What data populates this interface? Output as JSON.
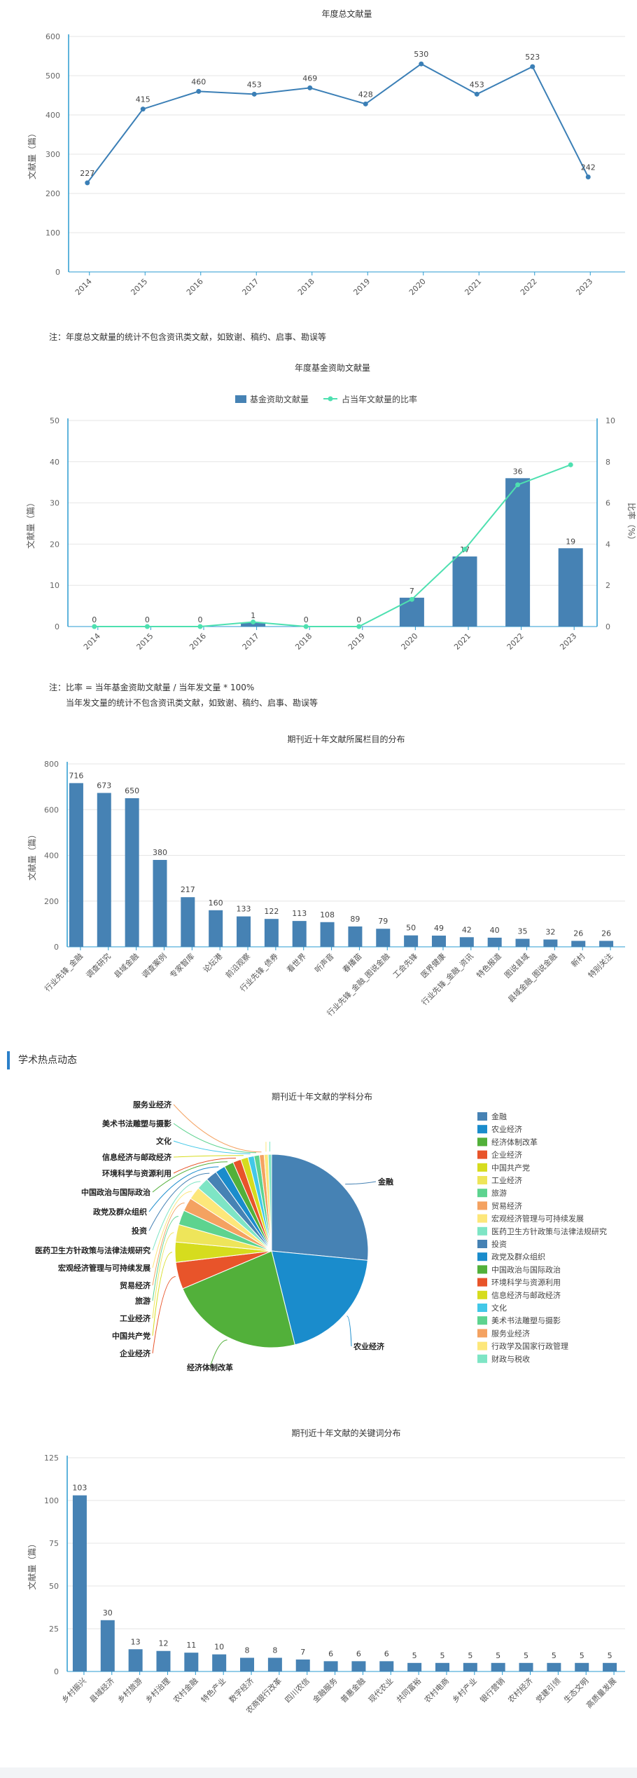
{
  "annual_note": "注：年度总文献量的统计不包含资讯类文献，如致谢、稿约、启事、勘误等",
  "fund_note": [
    "注：比率 = 当年基金资助文献量 / 当年发文量 * 100%",
    "当年发文量的统计不包含资讯类文献，如致谢、稿约、启事、勘误等"
  ],
  "section_title": "学术热点动态",
  "chart_data": [
    {
      "type": "line",
      "title": "年度总文献量",
      "ylabel": "文献量（篇）",
      "x": [
        "2014",
        "2015",
        "2016",
        "2017",
        "2018",
        "2019",
        "2020",
        "2021",
        "2022",
        "2023"
      ],
      "values": [
        227,
        415,
        460,
        453,
        469,
        428,
        530,
        453,
        523,
        242
      ],
      "ylim": [
        0,
        600
      ],
      "yticks": [
        0,
        100,
        200,
        300,
        400,
        500,
        600
      ],
      "grid": true,
      "color": "#3b7fb6"
    },
    {
      "type": "bar",
      "title": "年度基金资助文献量",
      "ylabel": "文献量（篇）",
      "y2label": "比率（%）",
      "legend_position": "top",
      "categories": [
        "2014",
        "2015",
        "2016",
        "2017",
        "2018",
        "2019",
        "2020",
        "2021",
        "2022",
        "2023"
      ],
      "series": [
        {
          "name": "基金资助文献量",
          "type": "bar",
          "values": [
            0,
            0,
            0,
            1,
            0,
            0,
            7,
            17,
            36,
            19
          ],
          "color": "#4682b4"
        },
        {
          "name": "占当年文献量的比率",
          "type": "line",
          "values": [
            0,
            0,
            0,
            0.22,
            0,
            0,
            1.32,
            3.75,
            6.88,
            7.85
          ],
          "color": "#4ee0b0"
        }
      ],
      "ylim": [
        0,
        50
      ],
      "yticks": [
        0,
        10,
        20,
        30,
        40,
        50
      ],
      "y2lim": [
        0,
        10
      ],
      "y2ticks": [
        0,
        2,
        4,
        6,
        8,
        10
      ],
      "grid": true
    },
    {
      "type": "bar",
      "title": "期刊近十年文献所属栏目的分布",
      "ylabel": "文献量（篇）",
      "categories": [
        "行业先锋_金融",
        "调查研究",
        "县域金融",
        "调查案例",
        "专家智库",
        "论坛港",
        "前沿观察",
        "行业先锋_债券",
        "看世界",
        "听声音",
        "春播苗",
        "行业先锋_金融_图说金融",
        "工会先锋",
        "医界健康",
        "行业先锋_金融_资讯",
        "特色报道",
        "图说县域",
        "县域金融_图说金融",
        "新村",
        "特别关注"
      ],
      "values": [
        716,
        673,
        650,
        380,
        217,
        160,
        133,
        122,
        113,
        108,
        89,
        79,
        50,
        49,
        42,
        40,
        35,
        32,
        26,
        26
      ],
      "ylim": [
        0,
        800
      ],
      "yticks": [
        0,
        200,
        400,
        600,
        800
      ],
      "grid": true,
      "color": "#4682b4"
    },
    {
      "type": "pie",
      "title": "期刊近十年文献的学科分布",
      "legend_position": "right",
      "labels": [
        "金融",
        "农业经济",
        "经济体制改革",
        "企业经济",
        "中国共产党",
        "工业经济",
        "旅游",
        "贸易经济",
        "宏观经济管理与可持续发展",
        "医药卫生方针政策与法律法规研究",
        "投资",
        "政党及群众组织",
        "中国政治与国际政治",
        "环境科学与资源利用",
        "信息经济与邮政经济",
        "文化",
        "美术书法雕塑与摄影",
        "服务业经济",
        "行政学及国家行政管理",
        "财政与税收"
      ],
      "values": [
        1180,
        870,
        1000,
        200,
        150,
        130,
        110,
        100,
        95,
        90,
        85,
        75,
        70,
        60,
        55,
        45,
        40,
        35,
        30,
        25
      ],
      "colors": [
        "#4682b4",
        "#1a8ccc",
        "#52b03a",
        "#e8542a",
        "#d6dc1e",
        "#eee55a",
        "#5dd38f",
        "#f4a261",
        "#fde77a",
        "#7ee5c5",
        "#4682b4",
        "#1a8ccc",
        "#52b03a",
        "#e8542a",
        "#d6dc1e",
        "#42c8e8",
        "#5dd38f",
        "#f4a261",
        "#fde77a",
        "#7ee5c5"
      ]
    },
    {
      "type": "bar",
      "title": "期刊近十年文献的关键词分布",
      "ylabel": "文献量（篇）",
      "categories": [
        "乡村振兴",
        "县域经济",
        "乡村旅游",
        "乡村治理",
        "农村金融",
        "特色产业",
        "数字经济",
        "农商银行改革",
        "四川农信",
        "金融服务",
        "普惠金融",
        "现代农业",
        "共同富裕",
        "农村电商",
        "乡村产业",
        "银行营销",
        "农村经济",
        "党建引领",
        "生态文明",
        "高质量发展"
      ],
      "values": [
        103,
        30,
        13,
        12,
        11,
        10,
        8,
        8,
        7,
        6,
        6,
        6,
        5,
        5,
        5,
        5,
        5,
        5,
        5,
        5
      ],
      "ylim": [
        0,
        125
      ],
      "yticks": [
        0,
        25,
        50,
        75,
        100,
        125
      ],
      "grid": true,
      "color": "#4682b4"
    }
  ]
}
